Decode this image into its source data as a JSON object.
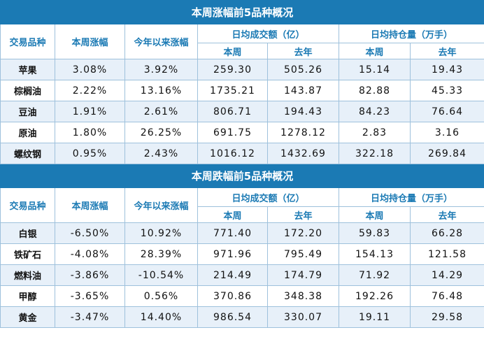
{
  "tables": [
    {
      "title": "本周涨幅前5品种概况",
      "headers": {
        "variety": "交易品种",
        "week_change": "本周涨幅",
        "ytd_change": "今年以来涨幅",
        "avg_turnover": "日均成交额（亿）",
        "avg_oi": "日均持仓量（万手）",
        "this_week": "本周",
        "last_year": "去年"
      },
      "rows": [
        {
          "name": "苹果",
          "week": "3.08%",
          "ytd": "3.92%",
          "turnover_week": "259.30",
          "turnover_ly": "505.26",
          "oi_week": "15.14",
          "oi_ly": "19.43"
        },
        {
          "name": "棕榈油",
          "week": "2.22%",
          "ytd": "13.16%",
          "turnover_week": "1735.21",
          "turnover_ly": "143.87",
          "oi_week": "82.88",
          "oi_ly": "45.33"
        },
        {
          "name": "豆油",
          "week": "1.91%",
          "ytd": "2.61%",
          "turnover_week": "806.71",
          "turnover_ly": "194.43",
          "oi_week": "84.23",
          "oi_ly": "76.64"
        },
        {
          "name": "原油",
          "week": "1.80%",
          "ytd": "26.25%",
          "turnover_week": "691.75",
          "turnover_ly": "1278.12",
          "oi_week": "2.83",
          "oi_ly": "3.16"
        },
        {
          "name": "螺纹钢",
          "week": "0.95%",
          "ytd": "2.43%",
          "turnover_week": "1016.12",
          "turnover_ly": "1432.69",
          "oi_week": "322.18",
          "oi_ly": "269.84"
        }
      ]
    },
    {
      "title": "本周跌幅前5品种概况",
      "headers": {
        "variety": "交易品种",
        "week_change": "本周涨幅",
        "ytd_change": "今年以来涨幅",
        "avg_turnover": "日均成交额（亿）",
        "avg_oi": "日均持仓量（万手）",
        "this_week": "本周",
        "last_year": "去年"
      },
      "rows": [
        {
          "name": "白银",
          "week": "-6.50%",
          "ytd": "10.92%",
          "turnover_week": "771.40",
          "turnover_ly": "172.20",
          "oi_week": "59.83",
          "oi_ly": "66.28"
        },
        {
          "name": "铁矿石",
          "week": "-4.08%",
          "ytd": "28.39%",
          "turnover_week": "971.96",
          "turnover_ly": "795.49",
          "oi_week": "154.13",
          "oi_ly": "121.58"
        },
        {
          "name": "燃料油",
          "week": "-3.86%",
          "ytd": "-10.54%",
          "turnover_week": "214.49",
          "turnover_ly": "174.79",
          "oi_week": "71.92",
          "oi_ly": "14.29"
        },
        {
          "name": "甲醇",
          "week": "-3.65%",
          "ytd": "0.56%",
          "turnover_week": "370.86",
          "turnover_ly": "348.38",
          "oi_week": "192.26",
          "oi_ly": "76.48"
        },
        {
          "name": "黄金",
          "week": "-3.47%",
          "ytd": "14.40%",
          "turnover_week": "986.54",
          "turnover_ly": "330.07",
          "oi_week": "19.11",
          "oi_ly": "29.58"
        }
      ]
    }
  ],
  "colors": {
    "header_bg": "#1b7ab4",
    "header_text": "#ffffff",
    "subheader_text": "#1b7ab4",
    "alt_row_bg": "#e7f0f9",
    "border": "#9ec1dc"
  }
}
